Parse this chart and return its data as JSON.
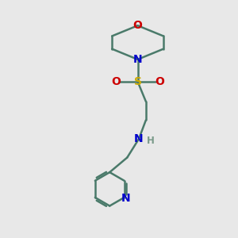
{
  "bg_color": "#e8e8e8",
  "bond_color": "#4a7a6a",
  "N_color": "#0000cc",
  "O_color": "#cc0000",
  "S_color": "#ccaa00",
  "H_color": "#7a9a8a",
  "line_width": 1.8,
  "font_size": 10,
  "figsize": [
    3.0,
    3.0
  ],
  "dpi": 100,
  "xlim": [
    0,
    10
  ],
  "ylim": [
    0,
    10
  ]
}
